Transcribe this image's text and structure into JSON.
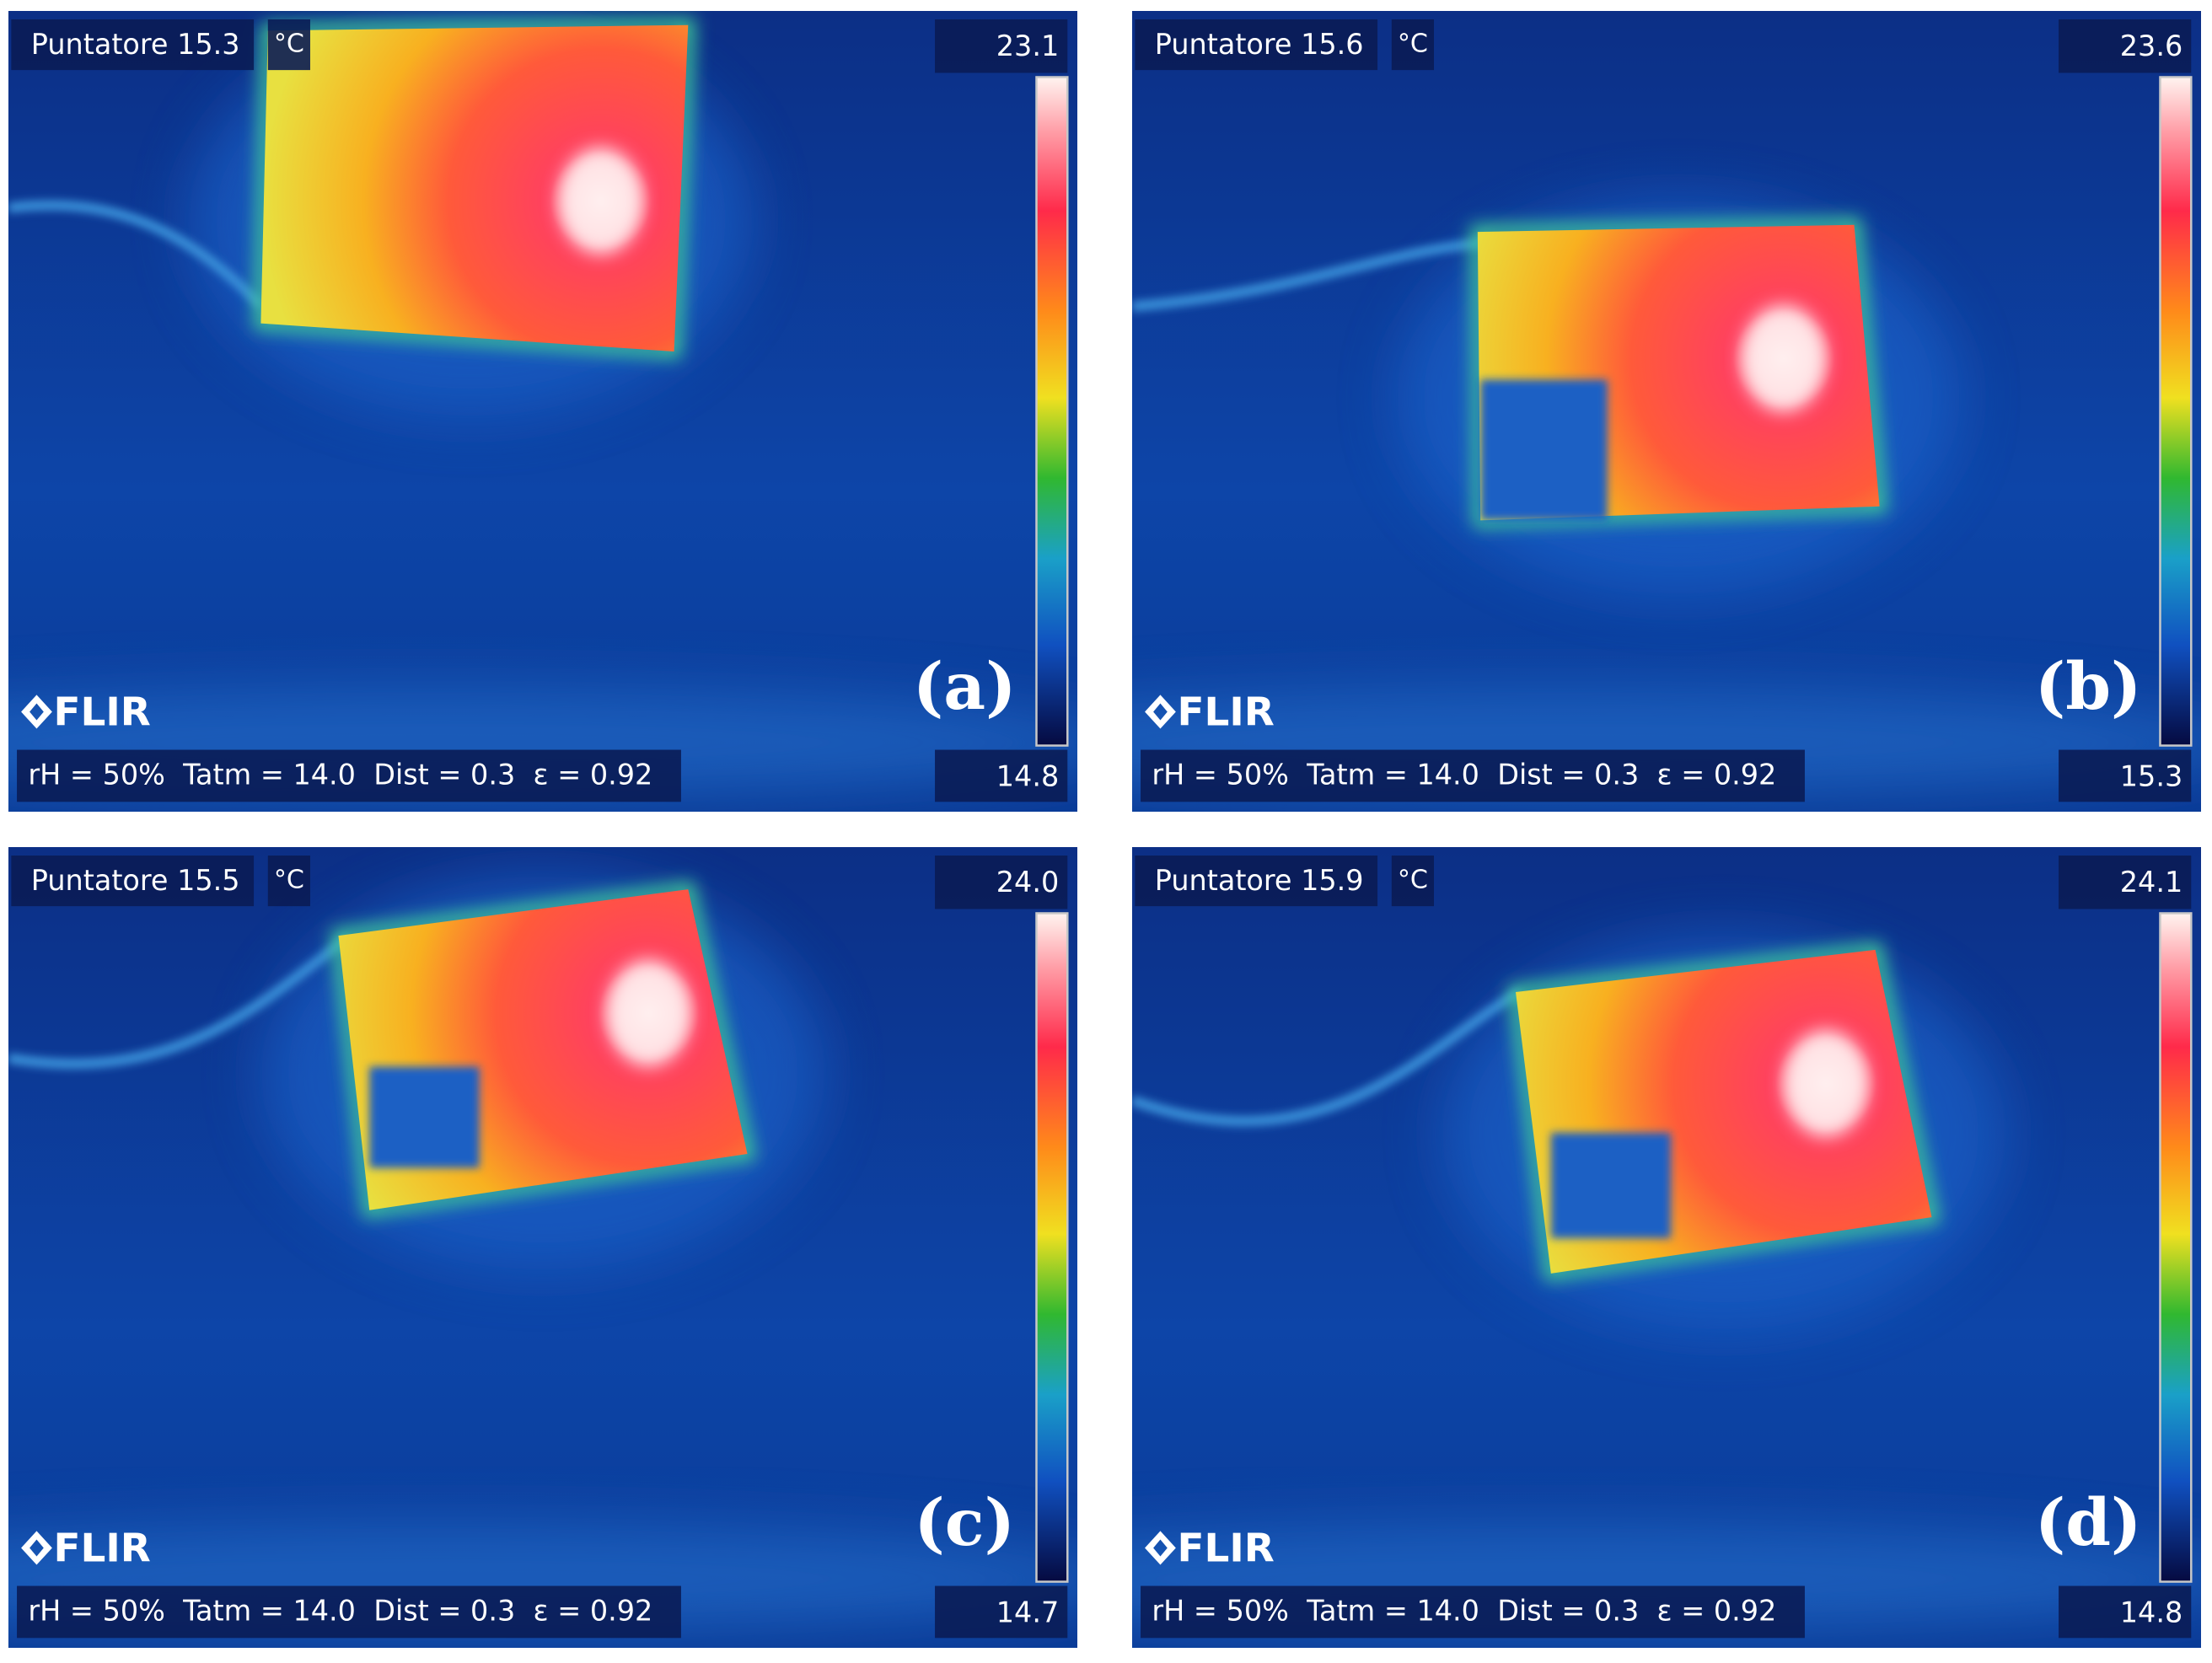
{
  "panels": [
    {
      "pointer": "Puntatore 15.3",
      "unit": "°C",
      "scale_max": "23.1",
      "scale_min": "14.8",
      "parameters": "rH = 50%  Tatm = 14.0  Dist = 0.3  ε = 0.92",
      "logo": "FLIR",
      "label": "(a)"
    },
    {
      "pointer": "Puntatore 15.6",
      "unit": "°C",
      "scale_max": "23.6",
      "scale_min": "15.3",
      "parameters": "rH = 50%  Tatm = 14.0  Dist = 0.3  ε = 0.92",
      "logo": "FLIR",
      "label": "(b)"
    },
    {
      "pointer": "Puntatore 15.5",
      "unit": "°C",
      "scale_max": "24.0",
      "scale_min": "14.7",
      "parameters": "rH = 50%  Tatm = 14.0  Dist = 0.3  ε = 0.92",
      "logo": "FLIR",
      "label": "(c)"
    },
    {
      "pointer": "Puntatore 15.9",
      "unit": "°C",
      "scale_max": "24.1",
      "scale_min": "14.8",
      "parameters": "rH = 50%  Tatm = 14.0  Dist = 0.3  ε = 0.92",
      "logo": "FLIR",
      "label": "(d)"
    }
  ]
}
